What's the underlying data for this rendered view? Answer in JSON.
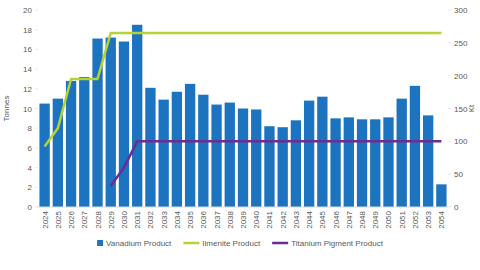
{
  "chart_data": {
    "type": "bar",
    "categories": [
      "2024",
      "2025",
      "2026",
      "2027",
      "2028",
      "2029",
      "2030",
      "2031",
      "2032",
      "2033",
      "2034",
      "2035",
      "2036",
      "2037",
      "2038",
      "2039",
      "2040",
      "2041",
      "2042",
      "2043",
      "2044",
      "2045",
      "2046",
      "2047",
      "2048",
      "2049",
      "2050",
      "2051",
      "2052",
      "2053",
      "2054"
    ],
    "series": [
      {
        "name": "Vanadium Product",
        "type": "bar",
        "color": "#1c73bf",
        "values": [
          10.5,
          11.0,
          12.8,
          13.2,
          17.1,
          17.2,
          16.8,
          18.5,
          12.1,
          10.9,
          11.7,
          12.5,
          11.4,
          10.4,
          10.6,
          10.0,
          9.9,
          8.2,
          8.1,
          8.8,
          10.8,
          11.2,
          9.0,
          9.1,
          8.9,
          8.9,
          9.1,
          11.0,
          12.3,
          9.3,
          2.3
        ]
      },
      {
        "name": "Ilmenite Product",
        "type": "line",
        "axis": "y2",
        "color": "#b5d334",
        "values": [
          92,
          120,
          195,
          195,
          195,
          265,
          265,
          265,
          265,
          265,
          265,
          265,
          265,
          265,
          265,
          265,
          265,
          265,
          265,
          265,
          265,
          265,
          265,
          265,
          265,
          265,
          265,
          265,
          265,
          265,
          265
        ]
      },
      {
        "name": "Titanium Pigment Product",
        "type": "line",
        "axis": "y2",
        "color": "#6b2d90",
        "values": [
          null,
          null,
          null,
          null,
          null,
          32,
          60,
          100,
          100,
          100,
          100,
          100,
          100,
          100,
          100,
          100,
          100,
          100,
          100,
          100,
          100,
          100,
          100,
          100,
          100,
          100,
          100,
          100,
          100,
          100,
          100
        ]
      }
    ],
    "y_label": "Tonnes",
    "y2_label": "Kt",
    "ylim": [
      0,
      20
    ],
    "yticks": [
      0,
      2,
      4,
      6,
      8,
      10,
      12,
      14,
      16,
      18,
      20
    ],
    "y2lim": [
      0,
      300
    ],
    "y2ticks": [
      0,
      50,
      100,
      150,
      200,
      250,
      300
    ],
    "legend": "bottom"
  }
}
